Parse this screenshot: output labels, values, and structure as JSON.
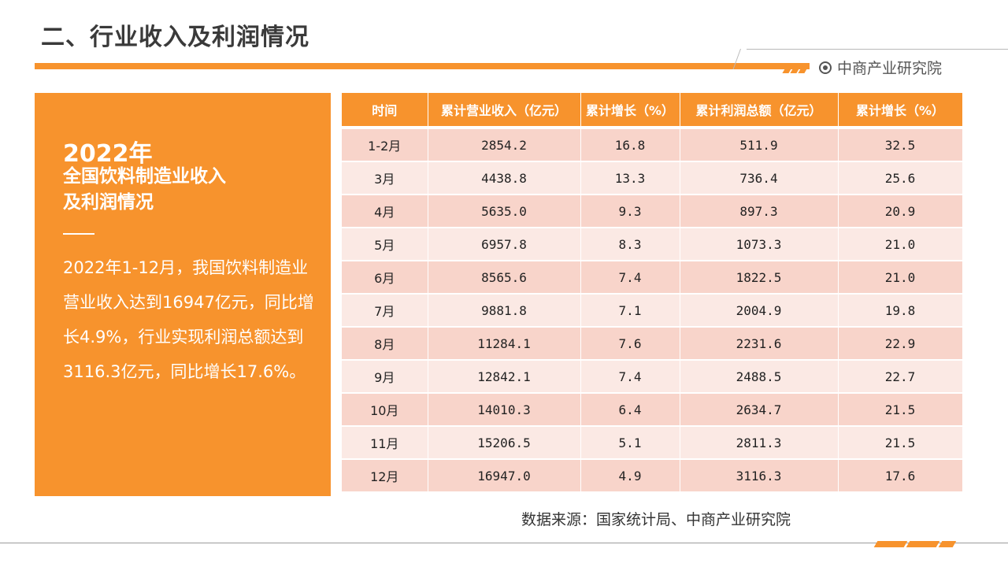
{
  "page": {
    "title": "二、行业收入及利润情况",
    "brand": "中商产业研究院"
  },
  "summary": {
    "year": "2022年",
    "subtitle_line1": "全国饮料制造业收入",
    "subtitle_line2": "及利润情况",
    "body": "2022年1-12月，我国饮料制造业营业收入达到16947亿元，同比增长4.9%，行业实现利润总额达到3116.3亿元，同比增长17.6%。"
  },
  "table": {
    "headers": [
      "时间",
      "累计营业收入（亿元）",
      "累计增长（%）",
      "累计利润总额（亿元）",
      "累计增长（%）"
    ],
    "rows": [
      [
        "1-2月",
        "2854.2",
        "16.8",
        "511.9",
        "32.5"
      ],
      [
        "3月",
        "4438.8",
        "13.3",
        "736.4",
        "25.6"
      ],
      [
        "4月",
        "5635.0",
        "9.3",
        "897.3",
        "20.9"
      ],
      [
        "5月",
        "6957.8",
        "8.3",
        "1073.3",
        "21.0"
      ],
      [
        "6月",
        "8565.6",
        "7.4",
        "1822.5",
        "21.0"
      ],
      [
        "7月",
        "9881.8",
        "7.1",
        "2004.9",
        "19.8"
      ],
      [
        "8月",
        "11284.1",
        "7.6",
        "2231.6",
        "22.9"
      ],
      [
        "9月",
        "12842.1",
        "7.4",
        "2488.5",
        "22.7"
      ],
      [
        "10月",
        "14010.3",
        "6.4",
        "2634.7",
        "21.5"
      ],
      [
        "11月",
        "15206.5",
        "5.1",
        "2811.3",
        "21.5"
      ],
      [
        "12月",
        "16947.0",
        "4.9",
        "3116.3",
        "17.6"
      ]
    ]
  },
  "source": "数据来源：国家统计局、中商产业研究院",
  "colors": {
    "accent": "#f7932d",
    "row_dark": "#f8d4ca",
    "row_light": "#fbe9e4"
  },
  "icons": [
    "brand-logo-icon"
  ]
}
